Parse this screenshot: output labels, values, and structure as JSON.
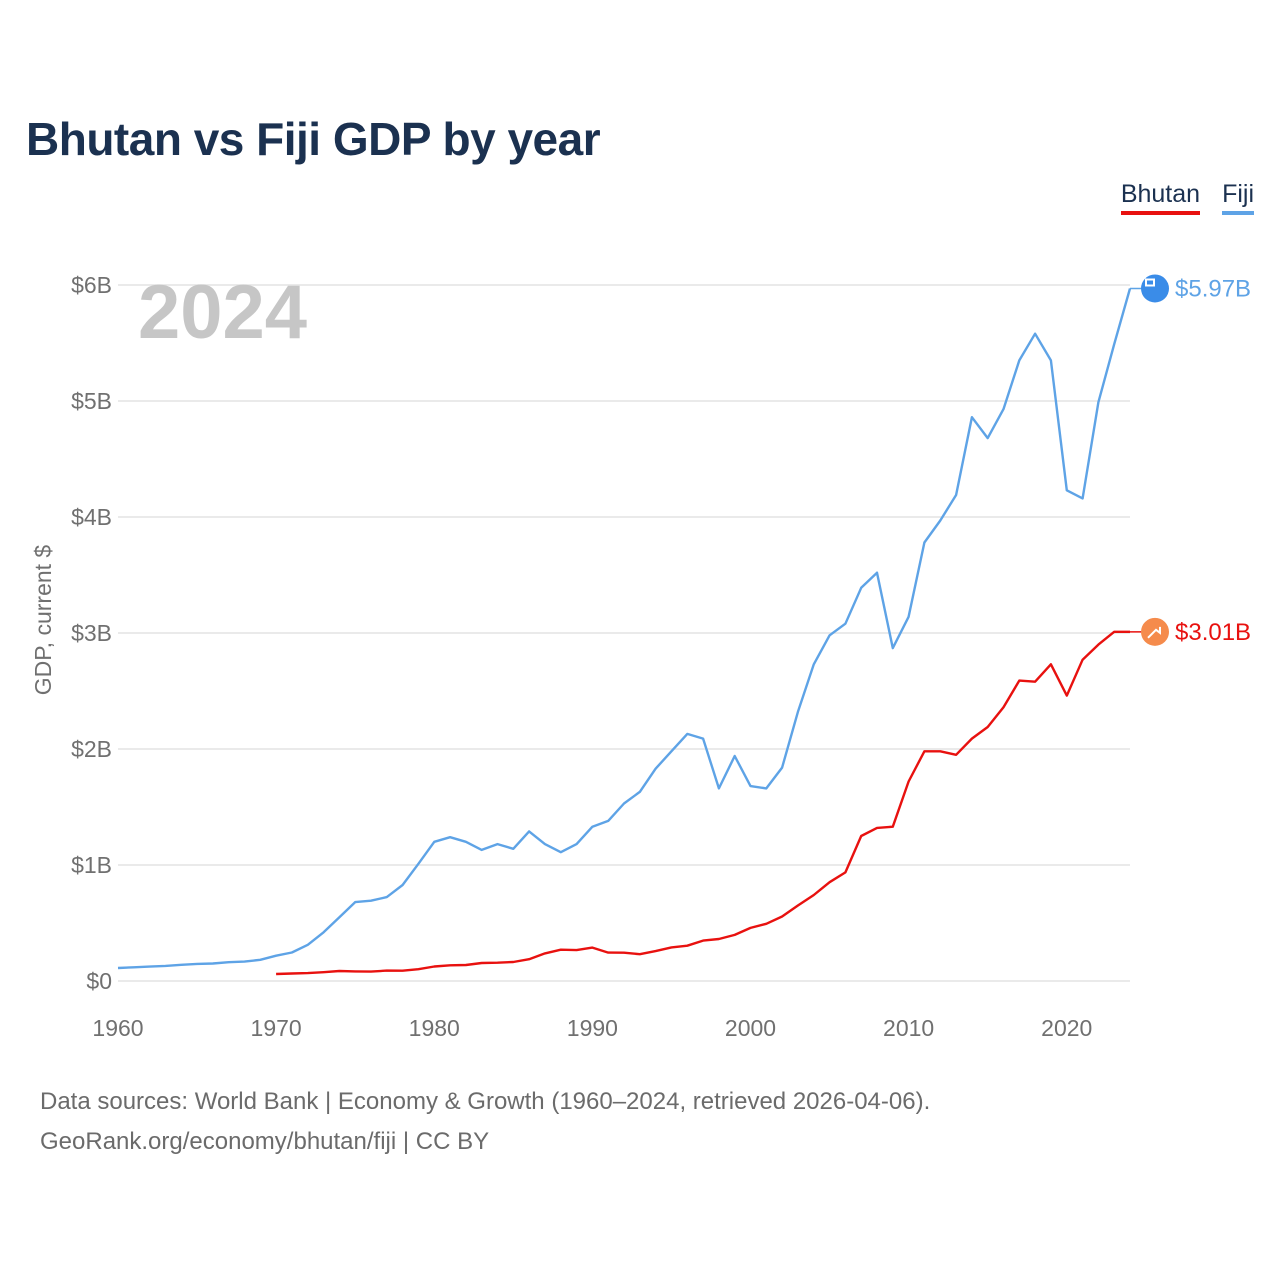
{
  "title": "Bhutan vs Fiji GDP by year",
  "legend": {
    "bhutan": "Bhutan",
    "fiji": "Fiji"
  },
  "year_overlay": "2024",
  "sources": {
    "line1": "Data sources: World Bank | Economy & Growth (1960–2024, retrieved 2026-04-06).",
    "line2": "GeoRank.org/economy/bhutan/fiji | CC BY"
  },
  "colors": {
    "bhutan": "#e8110f",
    "fiji": "#5ea3e6",
    "grid": "#e4e4e4",
    "axis_text": "#707070"
  },
  "chart_data": {
    "type": "line",
    "ylabel": "GDP, current $",
    "xlabel": "",
    "xlim": [
      1960,
      2024
    ],
    "ylim": [
      0,
      6000000000
    ],
    "x_ticks": [
      1960,
      1970,
      1980,
      1990,
      2000,
      2010,
      2020
    ],
    "y_ticks": [
      {
        "value": 0,
        "label": "$0"
      },
      {
        "value": 1000000000,
        "label": "$1B"
      },
      {
        "value": 2000000000,
        "label": "$2B"
      },
      {
        "value": 3000000000,
        "label": "$3B"
      },
      {
        "value": 4000000000,
        "label": "$4B"
      },
      {
        "value": 5000000000,
        "label": "$5B"
      },
      {
        "value": 6000000000,
        "label": "$6B"
      }
    ],
    "series": [
      {
        "key": "fiji",
        "name": "Fiji",
        "end_label": "$5.97B",
        "x": [
          1960,
          1961,
          1962,
          1963,
          1964,
          1965,
          1966,
          1967,
          1968,
          1969,
          1970,
          1971,
          1972,
          1973,
          1974,
          1975,
          1976,
          1977,
          1978,
          1979,
          1980,
          1981,
          1982,
          1983,
          1984,
          1985,
          1986,
          1987,
          1988,
          1989,
          1990,
          1991,
          1992,
          1993,
          1994,
          1995,
          1996,
          1997,
          1998,
          1999,
          2000,
          2001,
          2002,
          2003,
          2004,
          2005,
          2006,
          2007,
          2008,
          2009,
          2010,
          2011,
          2012,
          2013,
          2014,
          2015,
          2016,
          2017,
          2018,
          2019,
          2020,
          2021,
          2022,
          2023,
          2024
        ],
        "values": [
          112000000,
          118000000,
          124000000,
          130000000,
          140000000,
          147000000,
          151000000,
          162000000,
          167000000,
          183000000,
          218000000,
          246000000,
          312000000,
          420000000,
          550000000,
          680000000,
          692000000,
          723000000,
          828000000,
          1010000000,
          1200000000,
          1240000000,
          1200000000,
          1130000000,
          1180000000,
          1140000000,
          1290000000,
          1180000000,
          1110000000,
          1180000000,
          1330000000,
          1380000000,
          1530000000,
          1630000000,
          1830000000,
          1980000000,
          2130000000,
          2090000000,
          1660000000,
          1940000000,
          1680000000,
          1660000000,
          1840000000,
          2320000000,
          2730000000,
          2980000000,
          3080000000,
          3390000000,
          3520000000,
          2870000000,
          3140000000,
          3780000000,
          3970000000,
          4190000000,
          4860000000,
          4680000000,
          4930000000,
          5350000000,
          5580000000,
          5350000000,
          4230000000,
          4160000000,
          4990000000,
          5490000000,
          5970000000
        ]
      },
      {
        "key": "bhutan",
        "name": "Bhutan",
        "end_label": "$3.01B",
        "x": [
          1970,
          1971,
          1972,
          1973,
          1974,
          1975,
          1976,
          1977,
          1978,
          1979,
          1980,
          1981,
          1982,
          1983,
          1984,
          1985,
          1986,
          1987,
          1988,
          1989,
          1990,
          1991,
          1992,
          1993,
          1994,
          1995,
          1996,
          1997,
          1998,
          1999,
          2000,
          2001,
          2002,
          2003,
          2004,
          2005,
          2006,
          2007,
          2008,
          2009,
          2010,
          2011,
          2012,
          2013,
          2014,
          2015,
          2016,
          2017,
          2018,
          2019,
          2020,
          2021,
          2022,
          2023,
          2024
        ],
        "values": [
          60000000,
          65000000,
          68000000,
          76000000,
          86000000,
          83000000,
          81000000,
          90000000,
          89000000,
          102000000,
          125000000,
          135000000,
          138000000,
          155000000,
          158000000,
          164000000,
          188000000,
          238000000,
          270000000,
          266000000,
          288000000,
          245000000,
          244000000,
          231000000,
          258000000,
          290000000,
          304000000,
          348000000,
          362000000,
          397000000,
          458000000,
          493000000,
          556000000,
          651000000,
          741000000,
          852000000,
          936000000,
          1250000000,
          1320000000,
          1330000000,
          1720000000,
          1980000000,
          1980000000,
          1950000000,
          2090000000,
          2190000000,
          2360000000,
          2590000000,
          2580000000,
          2730000000,
          2460000000,
          2770000000,
          2900000000,
          3010000000,
          3010000000
        ]
      }
    ]
  }
}
